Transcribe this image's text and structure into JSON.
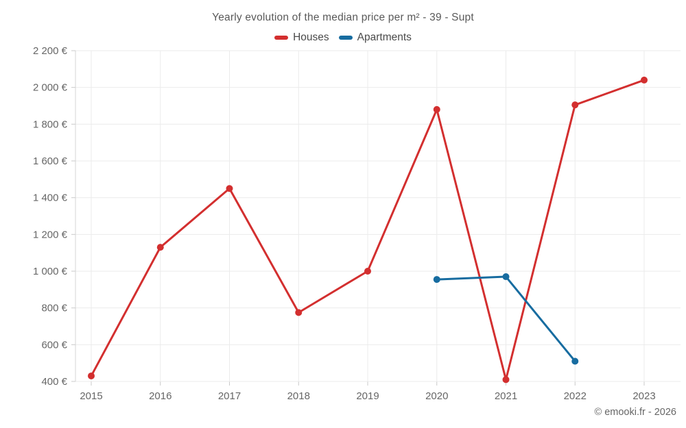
{
  "footer": {
    "copyright": "© emooki.fr - 2026"
  },
  "chart_data": {
    "type": "line",
    "title": "Yearly evolution of the median price per m² - 39 - Supt",
    "categories": [
      "2015",
      "2016",
      "2017",
      "2018",
      "2019",
      "2020",
      "2021",
      "2022",
      "2023"
    ],
    "series": [
      {
        "name": "Houses",
        "color": "#d32f2f",
        "marker": "circle",
        "values": [
          430,
          1130,
          1450,
          775,
          1000,
          1880,
          410,
          1905,
          2040
        ]
      },
      {
        "name": "Apartments",
        "color": "#176ca0",
        "marker": "circle",
        "values": [
          null,
          null,
          null,
          null,
          null,
          955,
          970,
          510,
          null
        ]
      }
    ],
    "y_ticks": [
      {
        "value": 400,
        "label": "400 €"
      },
      {
        "value": 600,
        "label": "600 €"
      },
      {
        "value": 800,
        "label": "800 €"
      },
      {
        "value": 1000,
        "label": "1 000 €"
      },
      {
        "value": 1200,
        "label": "1 200 €"
      },
      {
        "value": 1400,
        "label": "1 400 €"
      },
      {
        "value": 1600,
        "label": "1 600 €"
      },
      {
        "value": 1800,
        "label": "1 800 €"
      },
      {
        "value": 2000,
        "label": "2 000 €"
      },
      {
        "value": 2200,
        "label": "2 200 €"
      }
    ],
    "ylim": [
      400,
      2200
    ],
    "xlabel": "",
    "ylabel": "",
    "grid": true,
    "legend_position": "top"
  }
}
